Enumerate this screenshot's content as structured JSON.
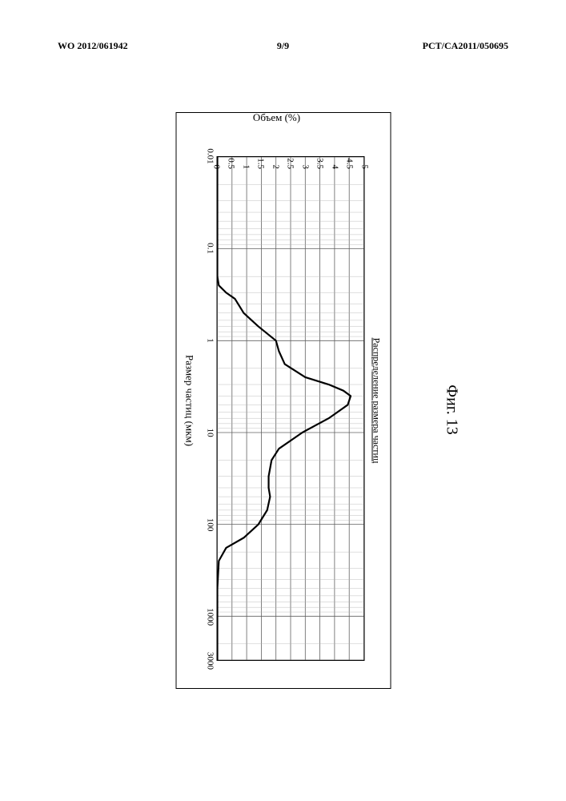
{
  "header": {
    "left": "WO 2012/061942",
    "center": "9/9",
    "right": "PCT/CA2011/050695"
  },
  "figure": {
    "caption": "Фиг. 13",
    "chart": {
      "type": "line",
      "title": "Распределение размера частиц",
      "x_label": "Размер частиц (мкм)",
      "y_label": "Объем (%)",
      "x_scale": "log",
      "y_scale": "linear",
      "xlim": [
        0.01,
        3000
      ],
      "ylim": [
        0,
        5
      ],
      "x_ticks": [
        0.01,
        0.1,
        1,
        10,
        100,
        1000,
        3000
      ],
      "x_tick_labels": [
        "0.01",
        "0.1",
        "1",
        "10",
        "100",
        "1000",
        "3000"
      ],
      "y_ticks": [
        0,
        0.5,
        1,
        1.5,
        2,
        2.5,
        3,
        3.5,
        4,
        4.5,
        5
      ],
      "y_tick_labels": [
        "0",
        "0.5",
        "1",
        "1.5",
        "2",
        "2.5",
        "3",
        "3.5",
        "4",
        "4.5",
        "5"
      ],
      "series": {
        "x": [
          0.01,
          0.1,
          0.2,
          0.25,
          0.3,
          0.35,
          0.5,
          0.7,
          1,
          1.3,
          1.8,
          2.5,
          3,
          3.5,
          4,
          5,
          7,
          10,
          15,
          20,
          30,
          40,
          50,
          70,
          100,
          140,
          180,
          250,
          500,
          1000,
          3000
        ],
        "y": [
          0,
          0,
          0,
          0.05,
          0.3,
          0.6,
          0.9,
          1.4,
          2.0,
          2.1,
          2.3,
          3.0,
          3.8,
          4.3,
          4.55,
          4.45,
          3.8,
          2.9,
          2.1,
          1.85,
          1.75,
          1.75,
          1.8,
          1.7,
          1.4,
          0.9,
          0.3,
          0.05,
          0,
          0,
          0
        ]
      },
      "line_color": "#000000",
      "line_width": 2.2,
      "grid_major_color": "#606060",
      "grid_minor_color": "#b0b0b0",
      "grid_major_width": 0.8,
      "grid_minor_width": 0.4,
      "background_color": "#ffffff",
      "tick_fontsize": 11,
      "label_fontsize": 13,
      "title_fontsize": 12
    }
  }
}
